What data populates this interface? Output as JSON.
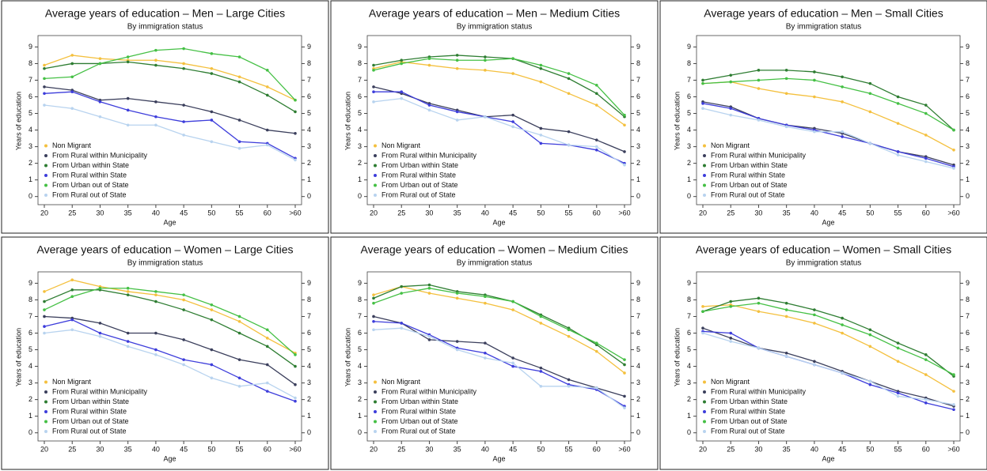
{
  "chart_data": [
    {
      "type": "line",
      "title": "Average years of education – Men – Large Cities",
      "subtitle": "By immigration status",
      "ylabel": "Years of education",
      "xlabel": "Age",
      "categories": [
        "20",
        "25",
        "30",
        "35",
        "40",
        "45",
        "50",
        "55",
        "60",
        ">60"
      ],
      "ylim": [
        -0.3,
        9.4
      ],
      "yticks": [
        0,
        1,
        2,
        3,
        4,
        5,
        6,
        7,
        8,
        9
      ],
      "y2lim": [
        -0.3,
        9.4
      ],
      "y2ticks": [
        0,
        1,
        2,
        3,
        4,
        5,
        6,
        7,
        8,
        9
      ],
      "legend": "lower-left",
      "series": [
        {
          "name": "Non Migrant",
          "color": "#f4c03e",
          "values": [
            7.9,
            8.5,
            8.3,
            8.2,
            8.2,
            8.0,
            7.7,
            7.2,
            6.6,
            5.8
          ]
        },
        {
          "name": "From Rural within Municipality",
          "color": "#3b3f5c",
          "values": [
            6.6,
            6.4,
            5.8,
            5.9,
            5.7,
            5.5,
            5.1,
            4.6,
            4.0,
            3.8
          ]
        },
        {
          "name": "From Urban within State",
          "color": "#2e7d32",
          "values": [
            7.7,
            8.0,
            8.0,
            8.1,
            7.9,
            7.7,
            7.4,
            6.9,
            6.1,
            5.1
          ]
        },
        {
          "name": "From Rural within State",
          "color": "#3d3ddb",
          "values": [
            6.2,
            6.3,
            5.7,
            5.2,
            4.8,
            4.5,
            4.6,
            3.3,
            3.2,
            2.3
          ]
        },
        {
          "name": "From Urban out of State",
          "color": "#45c045",
          "values": [
            7.1,
            7.2,
            8.0,
            8.4,
            8.8,
            8.9,
            8.6,
            8.4,
            7.6,
            5.8
          ]
        },
        {
          "name": "From Rural out of State",
          "color": "#b8d3ef",
          "values": [
            5.5,
            5.3,
            4.8,
            4.3,
            4.3,
            3.7,
            3.3,
            2.9,
            3.1,
            2.2
          ]
        }
      ]
    },
    {
      "type": "line",
      "title": "Average years of education – Men – Medium Cities",
      "subtitle": "By immigration status",
      "ylabel": "Years of education",
      "xlabel": "Age",
      "categories": [
        "20",
        "25",
        "30",
        "35",
        "40",
        "45",
        "50",
        "55",
        "60",
        ">60"
      ],
      "ylim": [
        -0.3,
        9.4
      ],
      "yticks": [
        0,
        1,
        2,
        3,
        4,
        5,
        6,
        7,
        8,
        9
      ],
      "y2lim": [
        -0.3,
        9.4
      ],
      "y2ticks": [
        0,
        1,
        2,
        3,
        4,
        5,
        6,
        7,
        8,
        9
      ],
      "legend": "lower-left",
      "series": [
        {
          "name": "Non Migrant",
          "color": "#f4c03e",
          "values": [
            7.7,
            8.1,
            7.9,
            7.7,
            7.6,
            7.4,
            6.9,
            6.2,
            5.5,
            4.3
          ]
        },
        {
          "name": "From Rural within Municipality",
          "color": "#3b3f5c",
          "values": [
            6.6,
            6.2,
            5.6,
            5.2,
            4.8,
            4.9,
            4.1,
            3.9,
            3.4,
            2.7
          ]
        },
        {
          "name": "From Urban within State",
          "color": "#2e7d32",
          "values": [
            7.9,
            8.2,
            8.4,
            8.5,
            8.4,
            8.3,
            7.7,
            7.1,
            6.2,
            4.8
          ]
        },
        {
          "name": "From Rural within State",
          "color": "#3d3ddb",
          "values": [
            6.3,
            6.3,
            5.5,
            5.1,
            4.8,
            4.5,
            3.2,
            3.1,
            2.8,
            2.0
          ]
        },
        {
          "name": "From Urban out of State",
          "color": "#45c045",
          "values": [
            7.6,
            8.0,
            8.3,
            8.2,
            8.2,
            8.3,
            7.9,
            7.4,
            6.7,
            4.9
          ]
        },
        {
          "name": "From Rural out of State",
          "color": "#b8d3ef",
          "values": [
            5.7,
            5.9,
            5.2,
            4.6,
            4.8,
            4.2,
            3.7,
            3.1,
            3.0,
            1.9
          ]
        }
      ]
    },
    {
      "type": "line",
      "title": "Average years of education – Men – Small Cities",
      "subtitle": "By immigration status",
      "ylabel": "Years of education",
      "xlabel": "Age",
      "categories": [
        "20",
        "25",
        "30",
        "35",
        "40",
        "45",
        "50",
        "55",
        "60",
        ">60"
      ],
      "ylim": [
        -0.3,
        9.4
      ],
      "yticks": [
        0,
        1,
        2,
        3,
        4,
        5,
        6,
        7,
        8,
        9
      ],
      "y2lim": [
        -0.3,
        9.4
      ],
      "y2ticks": [
        0,
        1,
        2,
        3,
        4,
        5,
        6,
        7,
        8,
        9
      ],
      "legend": "lower-left",
      "series": [
        {
          "name": "Non Migrant",
          "color": "#f4c03e",
          "values": [
            6.8,
            6.9,
            6.5,
            6.2,
            6.0,
            5.7,
            5.1,
            4.4,
            3.7,
            2.8
          ]
        },
        {
          "name": "From Rural within Municipality",
          "color": "#3b3f5c",
          "values": [
            5.7,
            5.4,
            4.7,
            4.3,
            4.1,
            3.8,
            3.2,
            2.7,
            2.4,
            1.9
          ]
        },
        {
          "name": "From Urban within State",
          "color": "#2e7d32",
          "values": [
            7.0,
            7.3,
            7.6,
            7.6,
            7.5,
            7.2,
            6.8,
            6.0,
            5.5,
            4.0
          ]
        },
        {
          "name": "From Rural within State",
          "color": "#3d3ddb",
          "values": [
            5.6,
            5.3,
            4.7,
            4.3,
            4.0,
            3.6,
            3.2,
            2.7,
            2.3,
            1.8
          ]
        },
        {
          "name": "From Urban out of State",
          "color": "#45c045",
          "values": [
            6.8,
            6.9,
            7.0,
            7.1,
            7.0,
            6.6,
            6.2,
            5.6,
            5.0,
            4.0
          ]
        },
        {
          "name": "From Rural out of State",
          "color": "#b8d3ef",
          "values": [
            5.3,
            4.9,
            4.6,
            4.2,
            3.9,
            3.9,
            3.2,
            2.5,
            2.1,
            1.7
          ]
        }
      ]
    },
    {
      "type": "line",
      "title": "Average years of education – Women – Large Cities",
      "subtitle": "By immigration status",
      "ylabel": "Years of education",
      "xlabel": "Age",
      "categories": [
        "20",
        "25",
        "30",
        "35",
        "40",
        "45",
        "50",
        "55",
        "60",
        ">60"
      ],
      "ylim": [
        -0.3,
        9.4
      ],
      "yticks": [
        0,
        1,
        2,
        3,
        4,
        5,
        6,
        7,
        8,
        9
      ],
      "y2lim": [
        -0.3,
        9.4
      ],
      "y2ticks": [
        0,
        1,
        2,
        3,
        4,
        5,
        6,
        7,
        8,
        9
      ],
      "legend": "lower-left",
      "series": [
        {
          "name": "Non Migrant",
          "color": "#f4c03e",
          "values": [
            8.5,
            9.2,
            8.8,
            8.5,
            8.3,
            8.0,
            7.4,
            6.7,
            5.7,
            4.8
          ]
        },
        {
          "name": "From Rural within Municipality",
          "color": "#3b3f5c",
          "values": [
            7.0,
            6.9,
            6.6,
            6.0,
            6.0,
            5.6,
            5.0,
            4.4,
            4.1,
            2.9
          ]
        },
        {
          "name": "From Urban within State",
          "color": "#2e7d32",
          "values": [
            7.9,
            8.6,
            8.6,
            8.3,
            7.9,
            7.4,
            6.8,
            6.0,
            5.2,
            4.0
          ]
        },
        {
          "name": "From Rural within State",
          "color": "#3d3ddb",
          "values": [
            6.4,
            6.8,
            6.0,
            5.5,
            5.0,
            4.4,
            4.1,
            3.3,
            2.5,
            1.9
          ]
        },
        {
          "name": "From Urban out of State",
          "color": "#45c045",
          "values": [
            7.4,
            8.2,
            8.7,
            8.7,
            8.5,
            8.3,
            7.7,
            7.0,
            6.2,
            4.7
          ]
        },
        {
          "name": "From Rural out of State",
          "color": "#b8d3ef",
          "values": [
            6.0,
            6.2,
            5.8,
            5.2,
            4.7,
            4.1,
            3.3,
            2.8,
            3.0,
            2.1
          ]
        }
      ]
    },
    {
      "type": "line",
      "title": "Average years of education – Women – Medium Cities",
      "subtitle": "By immigration status",
      "ylabel": "Years of education",
      "xlabel": "Age",
      "categories": [
        "20",
        "25",
        "30",
        "35",
        "40",
        "45",
        "50",
        "55",
        "60",
        ">60"
      ],
      "ylim": [
        -0.3,
        9.4
      ],
      "yticks": [
        0,
        1,
        2,
        3,
        4,
        5,
        6,
        7,
        8,
        9
      ],
      "y2lim": [
        -0.3,
        9.4
      ],
      "y2ticks": [
        0,
        1,
        2,
        3,
        4,
        5,
        6,
        7,
        8,
        9
      ],
      "legend": "lower-left",
      "series": [
        {
          "name": "Non Migrant",
          "color": "#f4c03e",
          "values": [
            8.3,
            8.8,
            8.4,
            8.1,
            7.8,
            7.4,
            6.6,
            5.8,
            4.9,
            3.6
          ]
        },
        {
          "name": "From Rural within Municipality",
          "color": "#3b3f5c",
          "values": [
            7.0,
            6.6,
            5.6,
            5.5,
            5.4,
            4.5,
            3.9,
            3.2,
            2.7,
            2.2
          ]
        },
        {
          "name": "From Urban within State",
          "color": "#2e7d32",
          "values": [
            8.1,
            8.8,
            8.9,
            8.5,
            8.3,
            7.9,
            7.1,
            6.3,
            5.3,
            4.1
          ]
        },
        {
          "name": "From Rural within State",
          "color": "#3d3ddb",
          "values": [
            6.7,
            6.6,
            5.9,
            5.1,
            4.8,
            4.0,
            3.7,
            2.9,
            2.6,
            1.6
          ]
        },
        {
          "name": "From Urban out of State",
          "color": "#45c045",
          "values": [
            7.8,
            8.4,
            8.7,
            8.4,
            8.2,
            7.9,
            7.0,
            6.2,
            5.4,
            4.4
          ]
        },
        {
          "name": "From Rural out of State",
          "color": "#b8d3ef",
          "values": [
            6.2,
            6.3,
            5.8,
            5.0,
            4.5,
            4.2,
            2.8,
            2.8,
            2.7,
            1.5
          ]
        }
      ]
    },
    {
      "type": "line",
      "title": "Average years of education – Women – Small Cities",
      "subtitle": "By immigration status",
      "ylabel": "Years of education",
      "xlabel": "Age",
      "categories": [
        "20",
        "25",
        "30",
        "35",
        "40",
        "45",
        "50",
        "55",
        "60",
        ">60"
      ],
      "ylim": [
        -0.3,
        9.4
      ],
      "yticks": [
        0,
        1,
        2,
        3,
        4,
        5,
        6,
        7,
        8,
        9
      ],
      "y2lim": [
        -0.3,
        9.4
      ],
      "y2ticks": [
        0,
        1,
        2,
        3,
        4,
        5,
        6,
        7,
        8,
        9
      ],
      "legend": "lower-left",
      "series": [
        {
          "name": "Non Migrant",
          "color": "#f4c03e",
          "values": [
            7.6,
            7.7,
            7.3,
            7.0,
            6.6,
            6.0,
            5.2,
            4.3,
            3.5,
            2.5
          ]
        },
        {
          "name": "From Rural within Municipality",
          "color": "#3b3f5c",
          "values": [
            6.3,
            5.7,
            5.1,
            4.8,
            4.3,
            3.7,
            3.1,
            2.5,
            2.1,
            1.6
          ]
        },
        {
          "name": "From Urban within State",
          "color": "#2e7d32",
          "values": [
            7.3,
            7.9,
            8.1,
            7.8,
            7.4,
            6.9,
            6.2,
            5.4,
            4.7,
            3.4
          ]
        },
        {
          "name": "From Rural within State",
          "color": "#3d3ddb",
          "values": [
            6.1,
            6.0,
            5.1,
            4.6,
            4.1,
            3.6,
            2.9,
            2.4,
            1.8,
            1.4
          ]
        },
        {
          "name": "From Urban out of State",
          "color": "#45c045",
          "values": [
            7.3,
            7.6,
            7.8,
            7.4,
            7.1,
            6.5,
            5.9,
            5.1,
            4.4,
            3.5
          ]
        },
        {
          "name": "From Rural out of State",
          "color": "#b8d3ef",
          "values": [
            6.0,
            5.5,
            5.1,
            4.6,
            4.1,
            3.6,
            3.1,
            2.2,
            2.0,
            1.7
          ]
        }
      ]
    }
  ]
}
